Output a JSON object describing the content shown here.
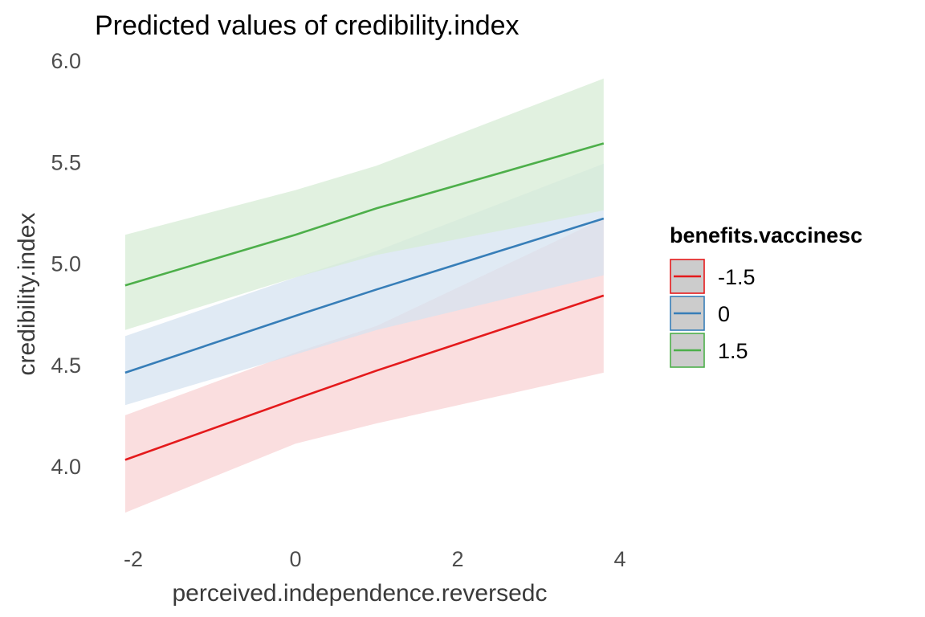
{
  "chart_data": {
    "type": "line",
    "title": "Predicted values of credibility.index",
    "xlabel": "perceived.independence.reversedc",
    "ylabel": "credibility.index",
    "xlim": [
      -2.1,
      3.8
    ],
    "ylim": [
      3.75,
      6.0
    ],
    "xticks": [
      -2,
      0,
      2,
      4
    ],
    "xtick_labels": [
      "-2",
      "0",
      "2",
      "4"
    ],
    "yticks": [
      4.0,
      4.5,
      5.0,
      5.5,
      6.0
    ],
    "ytick_labels": [
      "4.0",
      "4.5",
      "5.0",
      "5.5",
      "6.0"
    ],
    "grid": false,
    "legend": {
      "title": "benefits.vaccinesc",
      "position": "right"
    },
    "series": [
      {
        "name": "-1.5",
        "color": "#e41a1c",
        "fill": "#f8d3d4",
        "x": [
          -2.1,
          0,
          1,
          3.8
        ],
        "y": [
          4.03,
          4.33,
          4.47,
          4.84
        ],
        "lower": [
          3.77,
          4.11,
          4.21,
          4.46
        ],
        "upper": [
          4.25,
          4.56,
          4.69,
          5.22
        ]
      },
      {
        "name": "0",
        "color": "#377eb8",
        "fill": "#d6e3f0",
        "x": [
          -2.1,
          0,
          1,
          3.8
        ],
        "y": [
          4.46,
          4.74,
          4.87,
          5.22
        ],
        "lower": [
          4.3,
          4.55,
          4.67,
          4.94
        ],
        "upper": [
          4.64,
          4.93,
          5.06,
          5.49
        ]
      },
      {
        "name": "1.5",
        "color": "#4daf4a",
        "fill": "#d7ecd6",
        "x": [
          -2.1,
          0,
          1,
          3.8
        ],
        "y": [
          4.89,
          5.14,
          5.27,
          5.59
        ],
        "lower": [
          4.67,
          4.93,
          5.04,
          5.26
        ],
        "upper": [
          5.14,
          5.36,
          5.48,
          5.91
        ]
      }
    ]
  }
}
